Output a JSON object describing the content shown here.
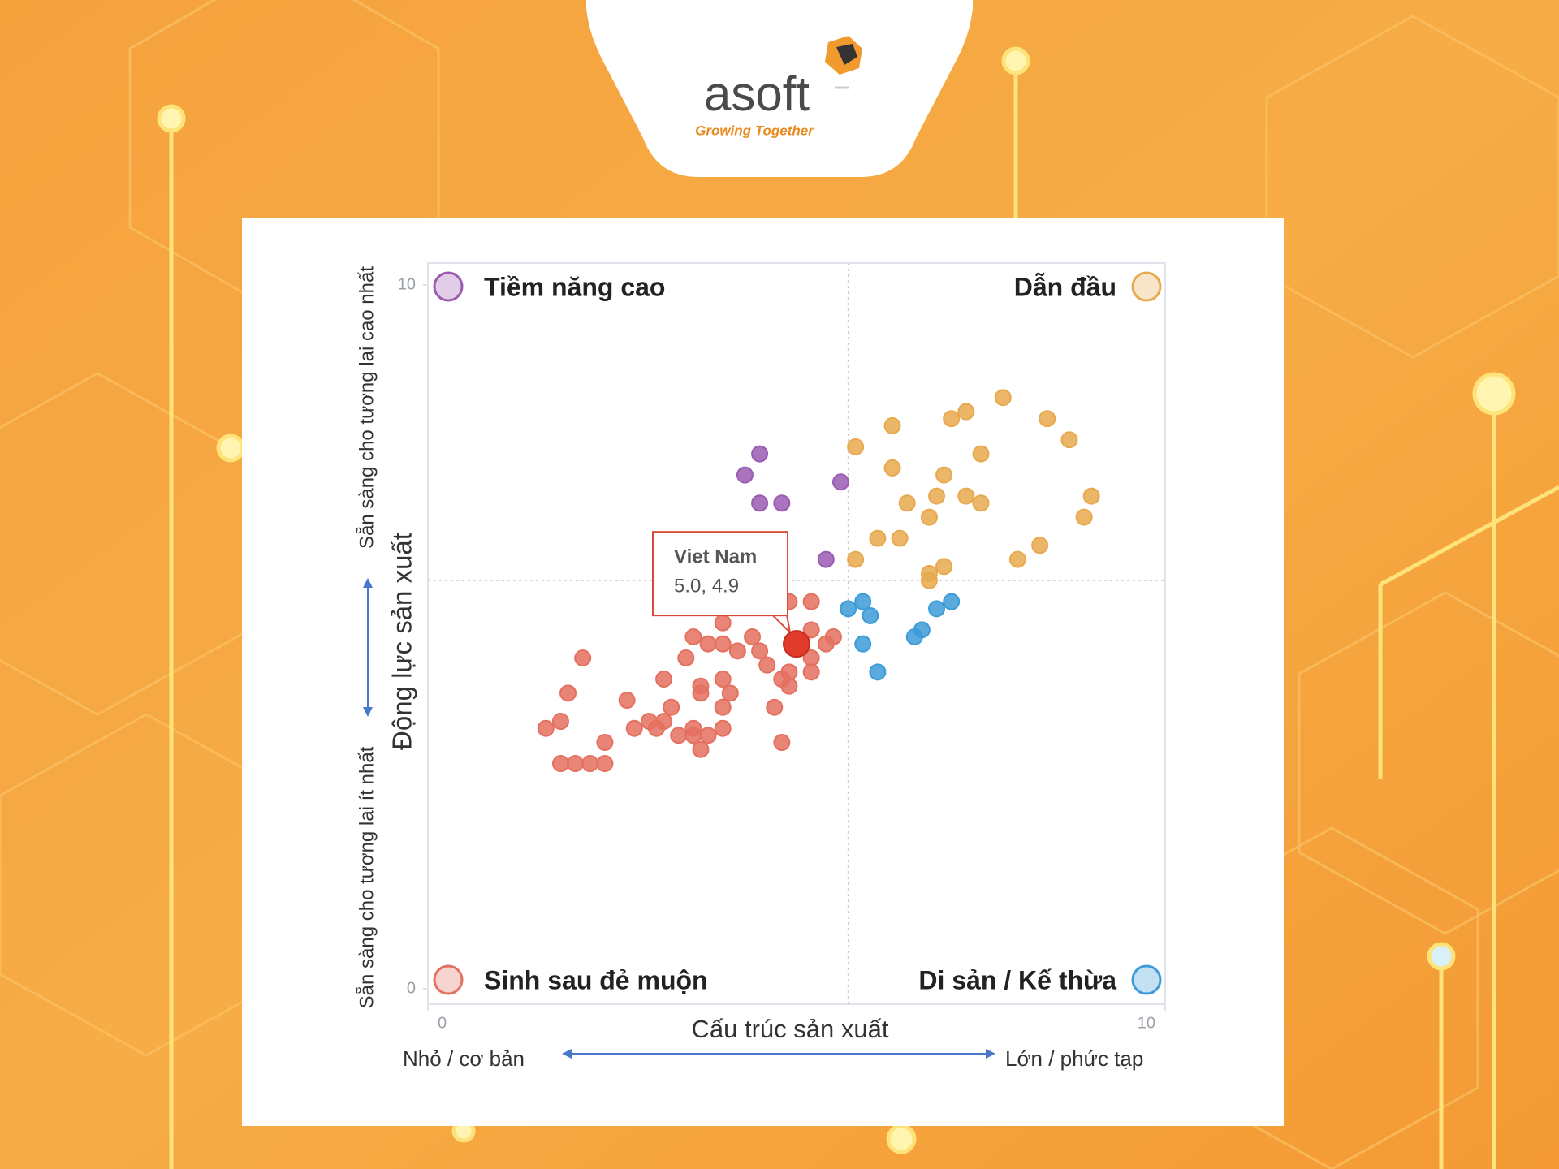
{
  "brand": {
    "name": "asoft",
    "tagline": "Growing Together"
  },
  "chart_data": {
    "type": "scatter",
    "x_label": "Cấu trúc sản xuất",
    "y_label": "Động lực sản xuất",
    "x_low_label": "Nhỏ / cơ bản",
    "x_high_label": "Lớn / phức tạp",
    "y_low_label": "Sẵn sàng cho tương lai ít nhất",
    "y_high_label": "Sẵn sàng cho tương lai cao nhất",
    "xlim": [
      0,
      10
    ],
    "ylim": [
      0,
      10
    ],
    "xticks": [
      0,
      10
    ],
    "yticks": [
      0,
      10
    ],
    "quadrant_lines": {
      "x": 5.7,
      "y": 5.8
    },
    "series": [
      {
        "name": "Tiềm năng cao",
        "color": "#9a5bb3",
        "quadrant": "top-left",
        "x": [
          4.5,
          4.3,
          4.5,
          4.8,
          5.6,
          5.4
        ],
        "y": [
          7.6,
          7.3,
          6.9,
          6.9,
          7.2,
          6.1
        ]
      },
      {
        "name": "Dẫn đầu",
        "color": "#e8a94e",
        "quadrant": "top-right",
        "x": [
          7.8,
          7.3,
          7.1,
          8.4,
          6.3,
          5.8,
          8.7,
          7.5,
          6.3,
          7.0,
          6.9,
          6.5,
          7.3,
          7.5,
          9.0,
          6.8,
          8.9,
          6.1,
          6.4,
          5.8,
          8.3,
          8.0,
          7.0,
          6.8,
          6.8
        ],
        "y": [
          8.4,
          8.2,
          8.1,
          8.1,
          8.0,
          7.7,
          7.8,
          7.6,
          7.4,
          7.3,
          7.0,
          6.9,
          7.0,
          6.9,
          7.0,
          6.7,
          6.7,
          6.4,
          6.4,
          6.1,
          6.3,
          6.1,
          6.0,
          5.9,
          5.8
        ]
      },
      {
        "name": "Sinh sau đẻ muộn",
        "color": "#e4705f",
        "quadrant": "bottom-left",
        "x": [
          5.2,
          4.9,
          4.0,
          3.6,
          3.8,
          4.0,
          4.4,
          5.2,
          5.5,
          5.4,
          2.1,
          4.2,
          4.5,
          3.5,
          5.2,
          4.6,
          3.2,
          4.0,
          3.7,
          4.1,
          4.8,
          4.9,
          5.2,
          4.9,
          3.7,
          1.9,
          2.7,
          3.3,
          4.0,
          4.7,
          3.0,
          3.2,
          1.8,
          2.8,
          3.1,
          3.6,
          4.0,
          1.6,
          3.4,
          3.6,
          3.8,
          2.4,
          4.8,
          3.7,
          2.0,
          1.8,
          2.2,
          2.4
        ],
        "y": [
          5.5,
          5.5,
          5.2,
          5.0,
          4.9,
          4.9,
          5.0,
          5.1,
          5.0,
          4.9,
          4.7,
          4.8,
          4.8,
          4.7,
          4.7,
          4.6,
          4.4,
          4.4,
          4.3,
          4.2,
          4.4,
          4.5,
          4.5,
          4.3,
          4.2,
          4.2,
          4.1,
          4.0,
          4.0,
          4.0,
          3.8,
          3.8,
          3.8,
          3.7,
          3.7,
          3.7,
          3.7,
          3.7,
          3.6,
          3.6,
          3.6,
          3.5,
          3.5,
          3.4,
          3.2,
          3.2,
          3.2,
          3.2
        ]
      },
      {
        "name": "Di sản / Kế thừa",
        "color": "#3d9bd8",
        "quadrant": "bottom-right",
        "x": [
          5.7,
          5.9,
          6.0,
          5.9,
          6.1,
          7.1,
          6.9,
          6.7,
          6.6
        ],
        "y": [
          5.4,
          5.5,
          5.3,
          4.9,
          4.5,
          5.5,
          5.4,
          5.1,
          5.0
        ]
      }
    ],
    "highlight": {
      "name": "Viet Nam",
      "x": 5.0,
      "y": 4.9,
      "value_label": "5.0, 4.9",
      "color": "#e03b2b"
    }
  }
}
